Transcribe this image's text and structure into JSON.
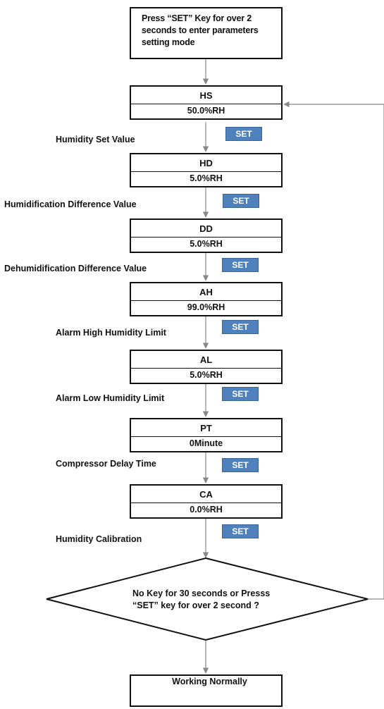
{
  "start": {
    "text": "Press  “SET” Key for over 2 seconds to enter parameters setting mode"
  },
  "params": [
    {
      "code": "HS",
      "value": "50.0%RH",
      "label": "Humidity Set Value",
      "button": "SET"
    },
    {
      "code": "HD",
      "value": "5.0%RH",
      "label": "Humidification Difference Value",
      "button": "SET"
    },
    {
      "code": "DD",
      "value": "5.0%RH",
      "label": "Dehumidification Difference Value",
      "button": "SET"
    },
    {
      "code": "AH",
      "value": "99.0%RH",
      "label": "Alarm High Humidity Limit",
      "button": "SET"
    },
    {
      "code": "AL",
      "value": "5.0%RH",
      "label": "Alarm Low Humidity Limit",
      "button": "SET"
    },
    {
      "code": "PT",
      "value": "0Minute",
      "label": "Compressor Delay Time",
      "button": "SET"
    },
    {
      "code": "CA",
      "value": "0.0%RH",
      "label": "Humidity Calibration",
      "button": "SET"
    }
  ],
  "decision": {
    "text": "No Key for 30 seconds or Presss “SET” key for over 2 second ?"
  },
  "end": {
    "text": "Working Normally"
  },
  "colors": {
    "set_button": "#4f81bd",
    "line": "#888888",
    "border": "#111111"
  }
}
